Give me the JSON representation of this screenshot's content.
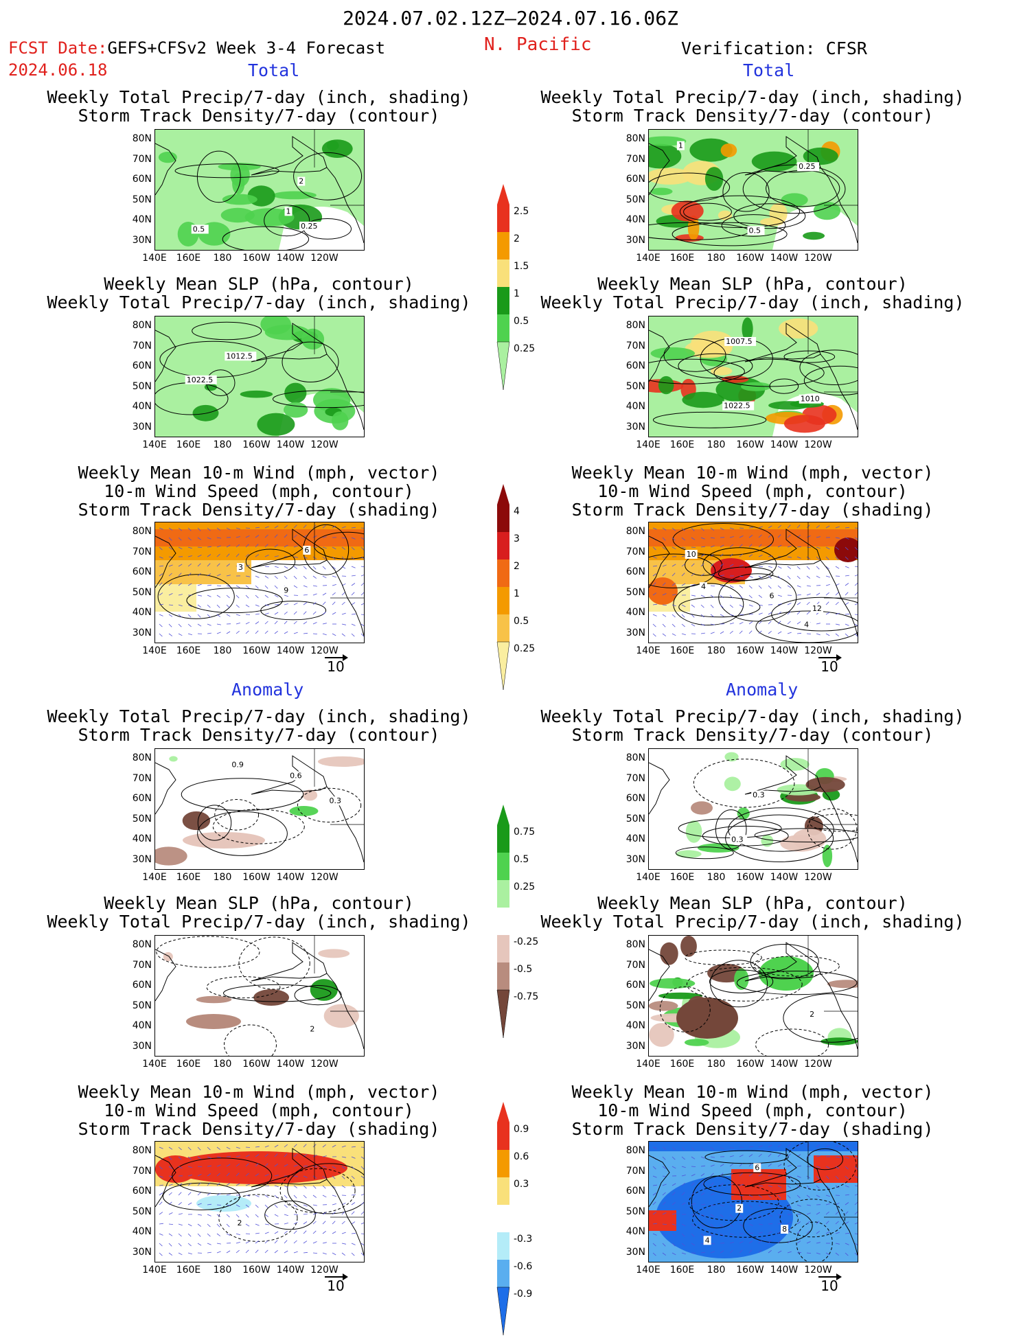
{
  "header": {
    "date_range": "2024.07.02.12Z–2024.07.16.06Z",
    "fcst_date_label": "FCST Date:",
    "fcst_date": "2024.06.18",
    "model": "GEFS+CFSv2 Week 3-4 Forecast",
    "region": "N. Pacific",
    "verification": "Verification: CFSR"
  },
  "sections": {
    "total": "Total",
    "anomaly": "Anomaly"
  },
  "titles": {
    "precip_storm": [
      "Weekly Total Precip/7-day (inch, shading)",
      "Storm Track Density/7-day (contour)"
    ],
    "slp_precip": [
      "Weekly Mean SLP (hPa, contour)",
      "Weekly Total Precip/7-day (inch, shading)"
    ],
    "wind_storm": [
      "Weekly Mean 10-m Wind (mph, vector)",
      "10-m Wind Speed (mph, contour)",
      "Storm Track Density/7-day (shading)"
    ]
  },
  "axes": {
    "lat": [
      "80N",
      "70N",
      "60N",
      "50N",
      "40N",
      "30N"
    ],
    "lon": [
      "140E",
      "160E",
      "180",
      "160W",
      "140W",
      "120W"
    ]
  },
  "vector_ref": "10",
  "colorbars": {
    "precip_total": {
      "labels": [
        "2.5",
        "2",
        "1.5",
        "1",
        "0.5",
        "0.25"
      ],
      "colors": [
        "#e8321e",
        "#f49a00",
        "#f9e07a",
        "#1a9a1a",
        "#4fd24f",
        "#aaf0a0"
      ]
    },
    "storm_total": {
      "labels": [
        "4",
        "3",
        "2",
        "1",
        "0.5",
        "0.25"
      ],
      "colors": [
        "#8c0a0a",
        "#d81e1e",
        "#f06a14",
        "#f49a00",
        "#f8c248",
        "#faeea0"
      ]
    },
    "precip_anom": {
      "labels": [
        "0.75",
        "0.5",
        "0.25",
        "-0.25",
        "-0.5",
        "-0.75"
      ],
      "colors": [
        "#1a9a1a",
        "#4fd24f",
        "#aaf0a0",
        "#ffffff",
        "#e6c6bc",
        "#b88c7e",
        "#74473a"
      ]
    },
    "storm_anom": {
      "labels": [
        "0.9",
        "0.6",
        "0.3",
        "-0.3",
        "-0.6",
        "-0.9"
      ],
      "colors": [
        "#e8321e",
        "#f49a00",
        "#f9e07a",
        "#ffffff",
        "#b4ecf8",
        "#5aaeef",
        "#1e6ee8"
      ]
    }
  },
  "contour_labels": {
    "p1l": [
      "2",
      "1",
      "0.5",
      "0.25"
    ],
    "p1r": [
      "0.25",
      "0.5",
      "1"
    ],
    "p2l": [
      "1012.5",
      "1022.5"
    ],
    "p2r": [
      "1007.5",
      "1010",
      "1022.5"
    ],
    "p3l": [
      "6",
      "3",
      "9"
    ],
    "p3r": [
      "4",
      "4",
      "6",
      "10",
      "12"
    ],
    "p4l": [
      "0.9",
      "0.6",
      "0.3"
    ],
    "p4r": [
      "0.3",
      "0.3"
    ],
    "p5l": [
      "2"
    ],
    "p5r": [
      "2"
    ],
    "p6l": [
      "2"
    ],
    "p6r": [
      "2",
      "4",
      "6",
      "8"
    ]
  },
  "colors": {
    "red_text": "#e0201c",
    "blue_text": "#2233dd"
  }
}
